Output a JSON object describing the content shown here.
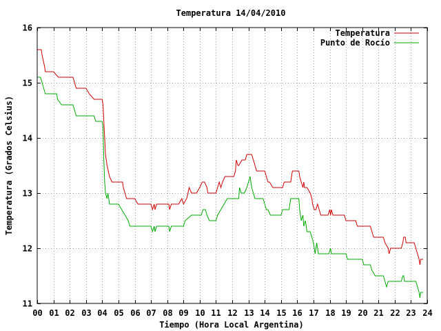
{
  "chart_data": {
    "type": "line",
    "title": "Temperatura 14/04/2010",
    "xlabel": "Tiempo (Hora Local Argentina)",
    "ylabel": "Temperatura (Grados Celsius)",
    "xlim": [
      0,
      24
    ],
    "ylim": [
      11,
      16
    ],
    "x_ticks": [
      "00",
      "01",
      "02",
      "03",
      "04",
      "05",
      "06",
      "07",
      "08",
      "09",
      "10",
      "11",
      "12",
      "13",
      "14",
      "15",
      "16",
      "17",
      "18",
      "19",
      "20",
      "21",
      "22",
      "23",
      "24"
    ],
    "y_ticks": [
      "11",
      "12",
      "13",
      "14",
      "15",
      "16"
    ],
    "grid": true,
    "legend": "top-right",
    "series": [
      {
        "name": "Temperatura",
        "color": "#cc0000",
        "points": [
          [
            0.0,
            15.6
          ],
          [
            0.25,
            15.6
          ],
          [
            0.3,
            15.5
          ],
          [
            0.45,
            15.3
          ],
          [
            0.5,
            15.2
          ],
          [
            1.0,
            15.2
          ],
          [
            1.3,
            15.1
          ],
          [
            1.5,
            15.1
          ],
          [
            2.2,
            15.1
          ],
          [
            2.4,
            14.9
          ],
          [
            3.0,
            14.9
          ],
          [
            3.2,
            14.8
          ],
          [
            3.5,
            14.7
          ],
          [
            4.0,
            14.7
          ],
          [
            4.05,
            14.6
          ],
          [
            4.1,
            14.3
          ],
          [
            4.15,
            14.0
          ],
          [
            4.2,
            13.7
          ],
          [
            4.3,
            13.5
          ],
          [
            4.45,
            13.3
          ],
          [
            4.6,
            13.2
          ],
          [
            5.25,
            13.2
          ],
          [
            5.3,
            13.1
          ],
          [
            5.5,
            12.9
          ],
          [
            6.0,
            12.9
          ],
          [
            6.2,
            12.8
          ],
          [
            7.0,
            12.8
          ],
          [
            7.1,
            12.7
          ],
          [
            7.2,
            12.8
          ],
          [
            7.25,
            12.7
          ],
          [
            7.35,
            12.8
          ],
          [
            8.1,
            12.8
          ],
          [
            8.15,
            12.7
          ],
          [
            8.25,
            12.8
          ],
          [
            8.7,
            12.8
          ],
          [
            8.9,
            12.9
          ],
          [
            9.0,
            12.8
          ],
          [
            9.2,
            12.9
          ],
          [
            9.35,
            13.1
          ],
          [
            9.5,
            13.0
          ],
          [
            9.8,
            13.0
          ],
          [
            10.0,
            13.1
          ],
          [
            10.15,
            13.2
          ],
          [
            10.3,
            13.2
          ],
          [
            10.45,
            13.1
          ],
          [
            10.5,
            13.0
          ],
          [
            11.0,
            13.0
          ],
          [
            11.1,
            13.1
          ],
          [
            11.2,
            13.2
          ],
          [
            11.3,
            13.1
          ],
          [
            11.4,
            13.2
          ],
          [
            11.55,
            13.3
          ],
          [
            11.8,
            13.3
          ],
          [
            12.1,
            13.3
          ],
          [
            12.2,
            13.4
          ],
          [
            12.25,
            13.6
          ],
          [
            12.35,
            13.5
          ],
          [
            12.4,
            13.5
          ],
          [
            12.6,
            13.6
          ],
          [
            12.8,
            13.6
          ],
          [
            12.9,
            13.7
          ],
          [
            13.2,
            13.7
          ],
          [
            13.3,
            13.6
          ],
          [
            13.5,
            13.4
          ],
          [
            14.0,
            13.4
          ],
          [
            14.1,
            13.3
          ],
          [
            14.2,
            13.2
          ],
          [
            14.3,
            13.2
          ],
          [
            14.5,
            13.1
          ],
          [
            15.1,
            13.1
          ],
          [
            15.2,
            13.2
          ],
          [
            15.6,
            13.2
          ],
          [
            15.7,
            13.4
          ],
          [
            16.1,
            13.4
          ],
          [
            16.15,
            13.3
          ],
          [
            16.25,
            13.2
          ],
          [
            16.35,
            13.1
          ],
          [
            16.4,
            13.2
          ],
          [
            16.45,
            13.1
          ],
          [
            16.6,
            13.1
          ],
          [
            16.8,
            13.0
          ],
          [
            16.9,
            12.9
          ],
          [
            16.95,
            12.8
          ],
          [
            17.05,
            12.7
          ],
          [
            17.15,
            12.7
          ],
          [
            17.25,
            12.8
          ],
          [
            17.35,
            12.7
          ],
          [
            17.45,
            12.6
          ],
          [
            17.9,
            12.6
          ],
          [
            18.0,
            12.7
          ],
          [
            18.05,
            12.6
          ],
          [
            18.1,
            12.7
          ],
          [
            18.2,
            12.6
          ],
          [
            18.9,
            12.6
          ],
          [
            19.0,
            12.5
          ],
          [
            19.6,
            12.5
          ],
          [
            19.7,
            12.4
          ],
          [
            20.5,
            12.4
          ],
          [
            20.6,
            12.3
          ],
          [
            20.7,
            12.2
          ],
          [
            21.3,
            12.2
          ],
          [
            21.4,
            12.1
          ],
          [
            21.6,
            12.0
          ],
          [
            21.65,
            11.9
          ],
          [
            21.75,
            12.0
          ],
          [
            22.4,
            12.0
          ],
          [
            22.5,
            12.1
          ],
          [
            22.55,
            12.2
          ],
          [
            22.65,
            12.2
          ],
          [
            22.7,
            12.1
          ],
          [
            23.2,
            12.1
          ],
          [
            23.3,
            12.0
          ],
          [
            23.4,
            11.9
          ],
          [
            23.5,
            11.8
          ],
          [
            23.55,
            11.7
          ],
          [
            23.6,
            11.8
          ],
          [
            23.75,
            11.8
          ]
        ]
      },
      {
        "name": "Punto de Rocío",
        "color": "#00aa00",
        "points": [
          [
            0.0,
            15.1
          ],
          [
            0.2,
            15.1
          ],
          [
            0.3,
            15.0
          ],
          [
            0.4,
            14.9
          ],
          [
            0.5,
            14.8
          ],
          [
            1.2,
            14.8
          ],
          [
            1.25,
            14.7
          ],
          [
            1.5,
            14.6
          ],
          [
            2.2,
            14.6
          ],
          [
            2.4,
            14.4
          ],
          [
            3.5,
            14.4
          ],
          [
            3.6,
            14.3
          ],
          [
            4.0,
            14.3
          ],
          [
            4.05,
            14.2
          ],
          [
            4.1,
            13.6
          ],
          [
            4.15,
            13.2
          ],
          [
            4.2,
            13.0
          ],
          [
            4.3,
            12.9
          ],
          [
            4.35,
            13.0
          ],
          [
            4.45,
            12.8
          ],
          [
            5.0,
            12.8
          ],
          [
            5.2,
            12.7
          ],
          [
            5.4,
            12.6
          ],
          [
            5.6,
            12.5
          ],
          [
            5.7,
            12.4
          ],
          [
            7.0,
            12.4
          ],
          [
            7.1,
            12.3
          ],
          [
            7.2,
            12.4
          ],
          [
            7.25,
            12.3
          ],
          [
            7.35,
            12.4
          ],
          [
            8.1,
            12.4
          ],
          [
            8.15,
            12.3
          ],
          [
            8.25,
            12.4
          ],
          [
            9.0,
            12.4
          ],
          [
            9.1,
            12.5
          ],
          [
            9.5,
            12.6
          ],
          [
            10.1,
            12.6
          ],
          [
            10.2,
            12.7
          ],
          [
            10.35,
            12.7
          ],
          [
            10.45,
            12.6
          ],
          [
            10.6,
            12.5
          ],
          [
            11.0,
            12.5
          ],
          [
            11.1,
            12.6
          ],
          [
            11.3,
            12.7
          ],
          [
            11.5,
            12.8
          ],
          [
            11.7,
            12.9
          ],
          [
            12.4,
            12.9
          ],
          [
            12.45,
            13.1
          ],
          [
            12.55,
            13.0
          ],
          [
            12.75,
            13.0
          ],
          [
            12.9,
            13.1
          ],
          [
            13.0,
            13.2
          ],
          [
            13.1,
            13.3
          ],
          [
            13.2,
            13.1
          ],
          [
            13.3,
            13.0
          ],
          [
            13.4,
            12.9
          ],
          [
            13.9,
            12.9
          ],
          [
            14.0,
            12.8
          ],
          [
            14.1,
            12.7
          ],
          [
            14.2,
            12.7
          ],
          [
            14.35,
            12.6
          ],
          [
            15.0,
            12.6
          ],
          [
            15.1,
            12.7
          ],
          [
            15.5,
            12.7
          ],
          [
            15.6,
            12.9
          ],
          [
            16.1,
            12.9
          ],
          [
            16.15,
            12.7
          ],
          [
            16.25,
            12.5
          ],
          [
            16.35,
            12.6
          ],
          [
            16.4,
            12.4
          ],
          [
            16.5,
            12.5
          ],
          [
            16.6,
            12.3
          ],
          [
            16.8,
            12.3
          ],
          [
            16.9,
            12.2
          ],
          [
            17.0,
            12.1
          ],
          [
            17.05,
            12.0
          ],
          [
            17.1,
            11.9
          ],
          [
            17.2,
            12.1
          ],
          [
            17.3,
            11.9
          ],
          [
            17.9,
            11.9
          ],
          [
            17.95,
            11.9
          ],
          [
            18.05,
            12.0
          ],
          [
            18.1,
            11.9
          ],
          [
            19.0,
            11.9
          ],
          [
            19.1,
            11.8
          ],
          [
            20.0,
            11.8
          ],
          [
            20.1,
            11.7
          ],
          [
            20.5,
            11.7
          ],
          [
            20.6,
            11.6
          ],
          [
            20.8,
            11.5
          ],
          [
            21.3,
            11.5
          ],
          [
            21.4,
            11.4
          ],
          [
            21.5,
            11.3
          ],
          [
            21.6,
            11.4
          ],
          [
            22.4,
            11.4
          ],
          [
            22.5,
            11.5
          ],
          [
            22.55,
            11.5
          ],
          [
            22.6,
            11.4
          ],
          [
            23.3,
            11.4
          ],
          [
            23.4,
            11.3
          ],
          [
            23.5,
            11.2
          ],
          [
            23.55,
            11.1
          ],
          [
            23.6,
            11.2
          ],
          [
            23.75,
            11.2
          ]
        ]
      }
    ]
  }
}
